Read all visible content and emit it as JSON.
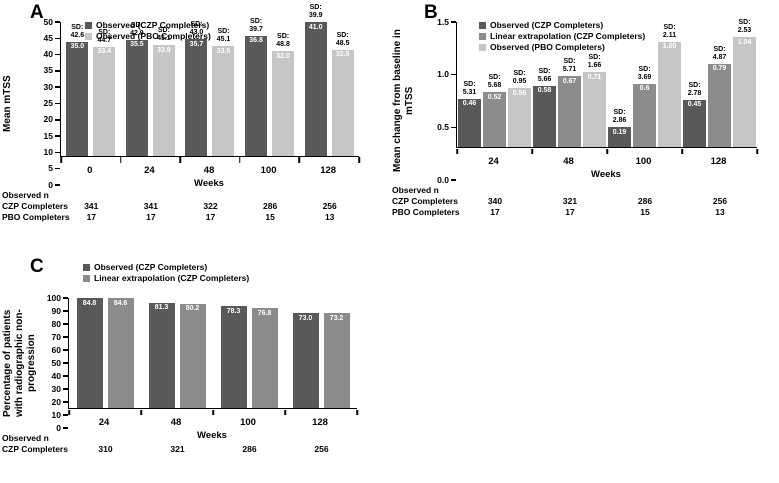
{
  "figure": {
    "sd_label_prefix": "SD:",
    "observed_n_header": "Observed n"
  },
  "colors": {
    "czp_observed_dark": "#595959",
    "czp_linear_extrapolation": "#8c8c8c",
    "pbo_observed_light": "#c6c6c6",
    "bar_value_text": "#ffffff",
    "axis": "#000000"
  },
  "chart_data": [
    {
      "panel": "A",
      "type": "bar",
      "title": "",
      "xlabel": "Weeks",
      "ylabel": "Mean mTSS",
      "ylim": [
        0,
        50
      ],
      "yticks": [
        "0",
        "5",
        "10",
        "15",
        "20",
        "25",
        "30",
        "35",
        "40",
        "45",
        "50"
      ],
      "grid": false,
      "legend_position": "top-left-inside",
      "categories": [
        "0",
        "24",
        "48",
        "100",
        "128"
      ],
      "series": [
        {
          "name": "Observed (CZP Completers)",
          "color": "#595959",
          "values": [
            "35.0",
            "35.5",
            "35.7",
            "36.8",
            "41.0"
          ],
          "sd": [
            "42.6",
            "42.9",
            "43.0",
            "39.7",
            "39.9"
          ]
        },
        {
          "name": "Observed (PBO Completers)",
          "color": "#c6c6c6",
          "values": [
            "33.4",
            "33.9",
            "33.5",
            "32.0",
            "32.5"
          ],
          "sd": [
            "44.7",
            "45.1",
            "45.1",
            "48.8",
            "48.5"
          ]
        }
      ],
      "table": {
        "header": "Observed n",
        "rows": [
          {
            "label": "CZP Completers",
            "values": [
              "341",
              "341",
              "322",
              "286",
              "256"
            ]
          },
          {
            "label": "PBO Completers",
            "values": [
              "17",
              "17",
              "17",
              "15",
              "13"
            ]
          }
        ]
      }
    },
    {
      "panel": "B",
      "type": "bar",
      "title": "",
      "xlabel": "Weeks",
      "ylabel": "Mean change from baseline in mTSS",
      "ylim": [
        0,
        1.5
      ],
      "yticks": [
        "0.0",
        "0.5",
        "1.0",
        "1.5"
      ],
      "grid": false,
      "legend_position": "top-left-inside",
      "categories": [
        "24",
        "48",
        "100",
        "128"
      ],
      "series": [
        {
          "name": "Observed (CZP Completers)",
          "color": "#595959",
          "values": [
            "0.46",
            "0.58",
            "0.19",
            "0.45"
          ],
          "sd": [
            "5.31",
            "5.66",
            "2.86",
            "2.78"
          ]
        },
        {
          "name": "Linear extrapolation (CZP Completers)",
          "color": "#8c8c8c",
          "values": [
            "0.52",
            "0.67",
            "0.6",
            "0.79"
          ],
          "sd": [
            "5.68",
            "5.71",
            "3.69",
            "4.87"
          ]
        },
        {
          "name": "Observed (PBO Completers)",
          "color": "#c6c6c6",
          "values": [
            "0.56",
            "0.71",
            "1.00",
            "1.04"
          ],
          "sd": [
            "0.95",
            "1.66",
            "2.11",
            "2.53"
          ]
        }
      ],
      "table": {
        "header": "Observed n",
        "rows": [
          {
            "label": "CZP Completers",
            "values": [
              "340",
              "321",
              "286",
              "256"
            ]
          },
          {
            "label": "PBO Completers",
            "values": [
              "17",
              "17",
              "15",
              "13"
            ]
          }
        ]
      }
    },
    {
      "panel": "C",
      "type": "bar",
      "title": "",
      "xlabel": "Weeks",
      "ylabel": "Percentage of patients with radiographic non-progression",
      "ylim": [
        0,
        100
      ],
      "yticks": [
        "0",
        "10",
        "20",
        "30",
        "40",
        "50",
        "60",
        "70",
        "80",
        "90",
        "100"
      ],
      "grid": false,
      "legend_position": "above-plot-left",
      "categories": [
        "24",
        "48",
        "100",
        "128"
      ],
      "series": [
        {
          "name": "Observed (CZP Completers)",
          "color": "#595959",
          "values": [
            "84.8",
            "81.3",
            "78.3",
            "73.0"
          ],
          "sd": null
        },
        {
          "name": "Linear extrapolation (CZP Completers)",
          "color": "#8c8c8c",
          "values": [
            "84.6",
            "80.2",
            "76.8",
            "73.2"
          ],
          "sd": null
        }
      ],
      "table": {
        "header": "Observed n",
        "rows": [
          {
            "label": "CZP Completers",
            "values": [
              "310",
              "321",
              "286",
              "256"
            ]
          }
        ]
      }
    }
  ]
}
